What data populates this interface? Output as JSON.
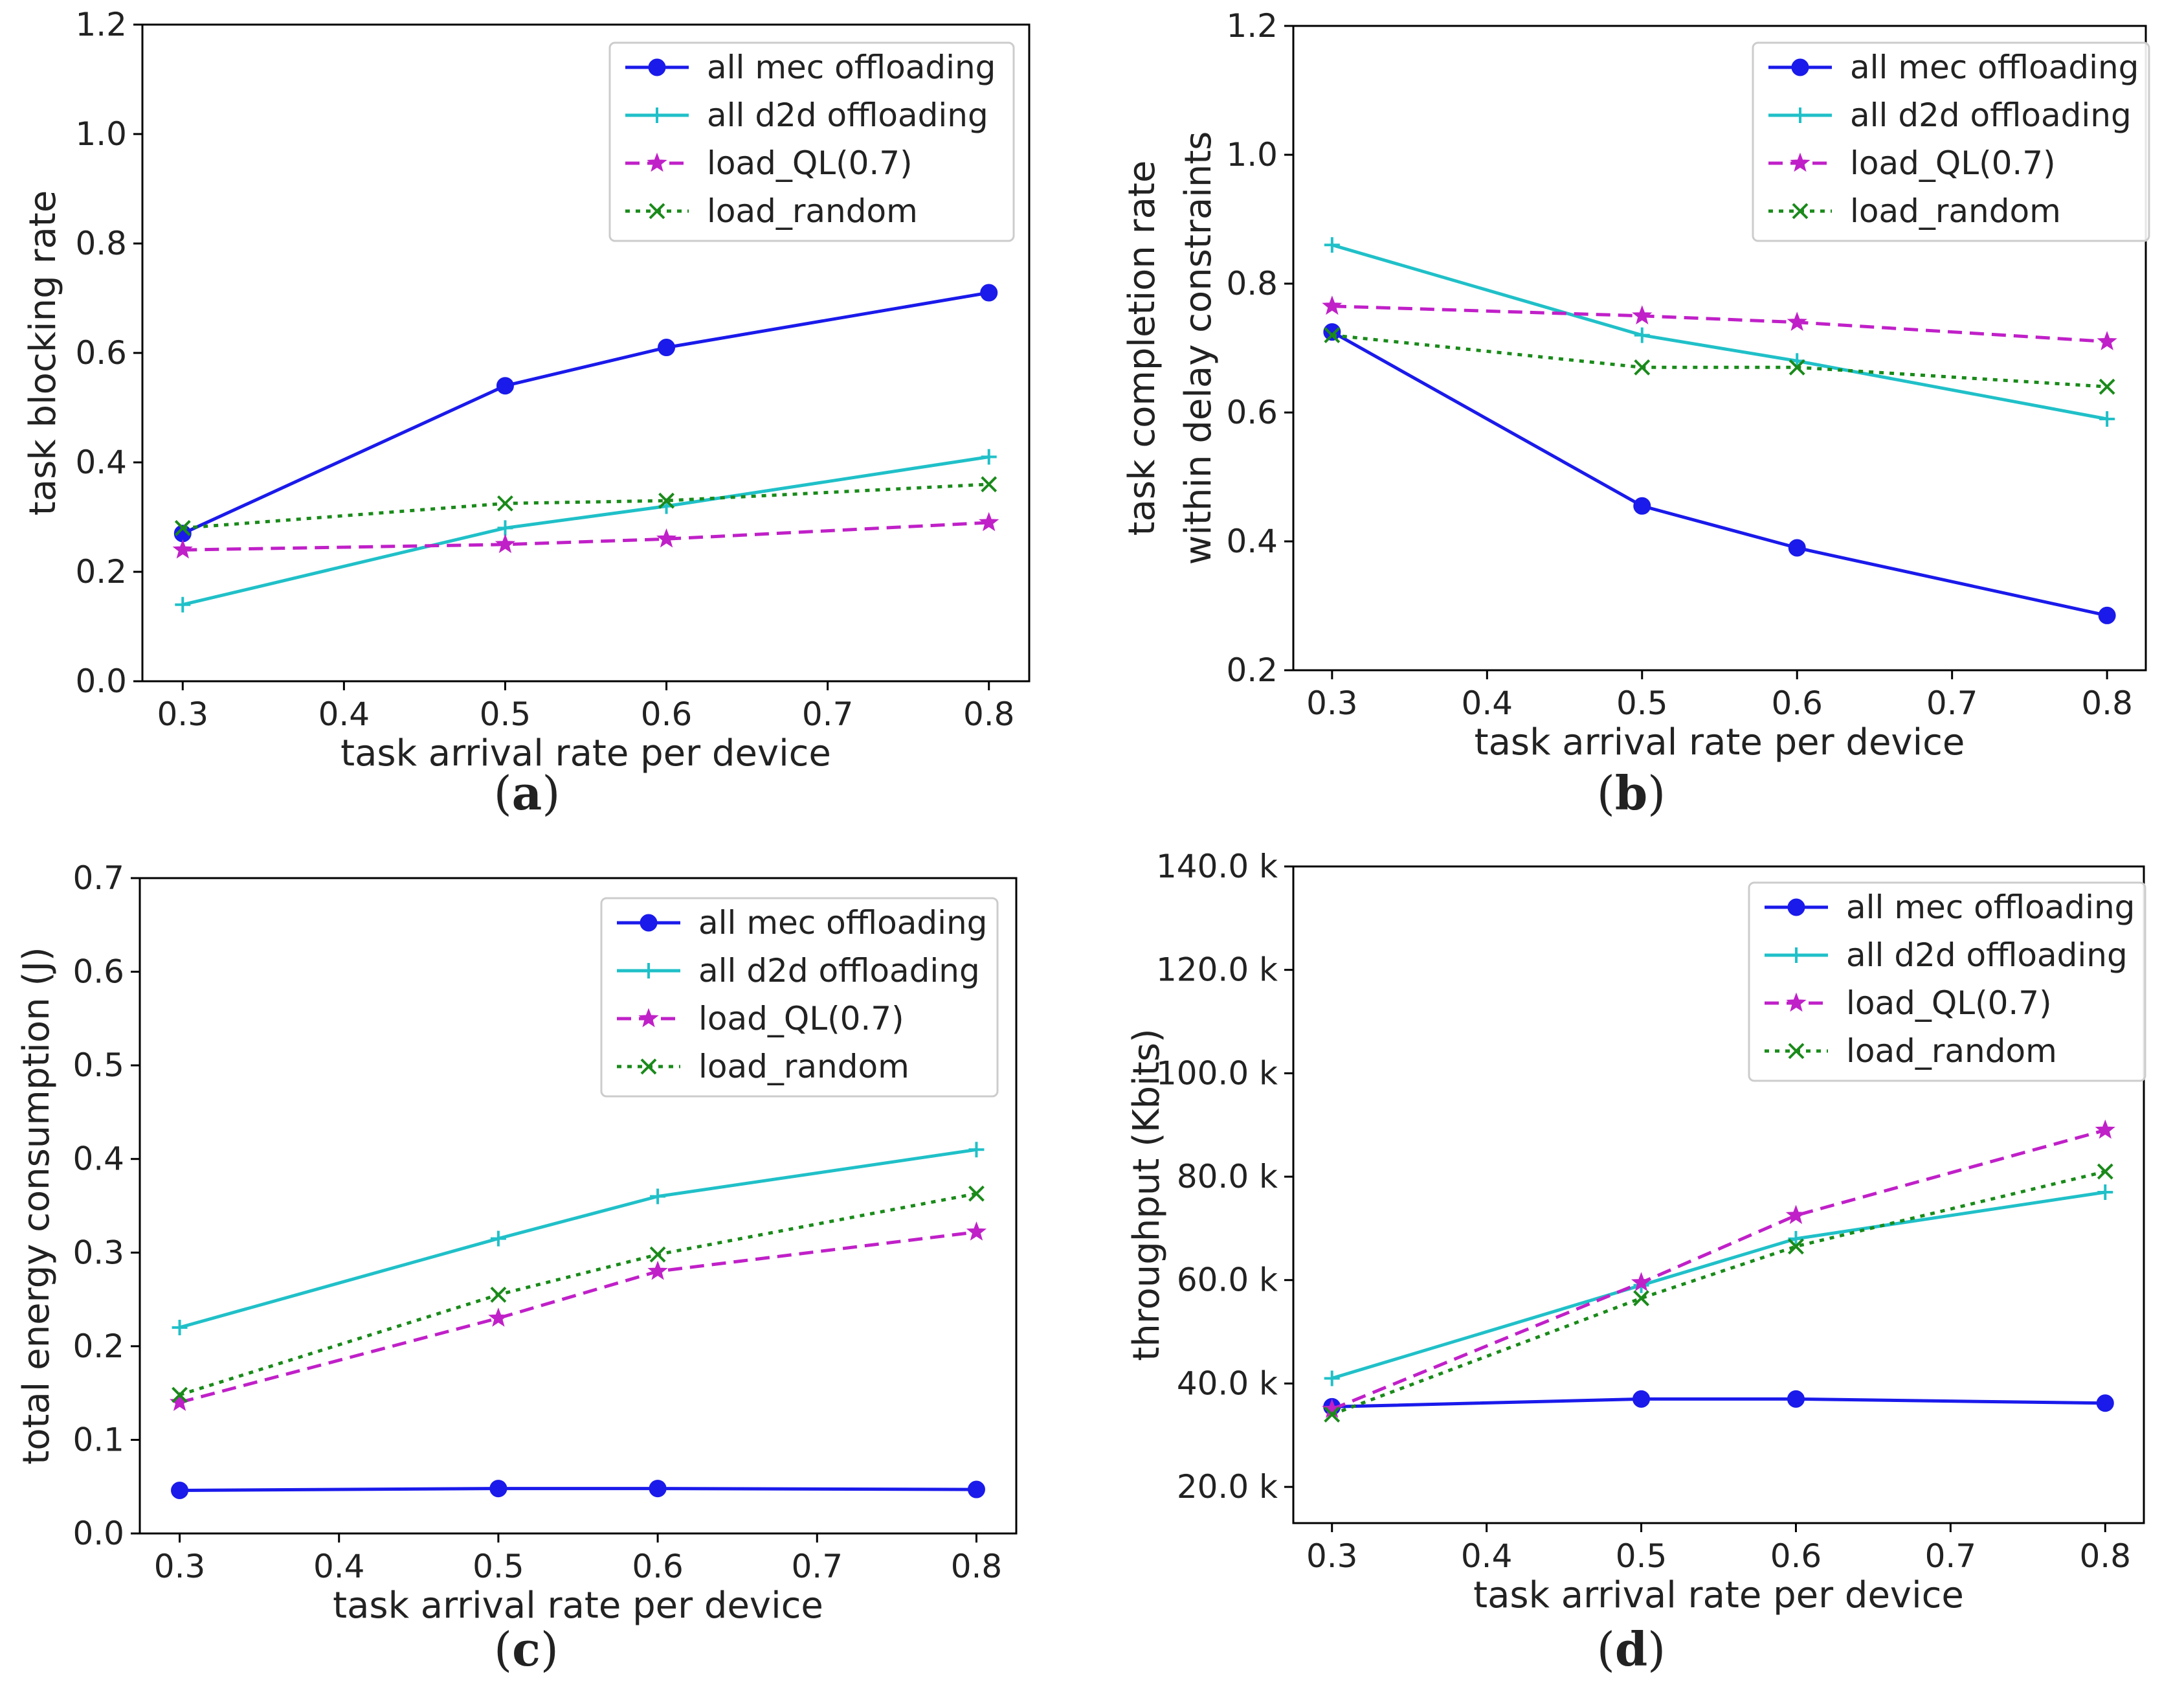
{
  "colors": {
    "mec": "#1a1aeb",
    "d2d": "#20c0c8",
    "ql": "#c020c8",
    "random": "#1a8a1a",
    "axis": "#000000"
  },
  "chart_data": [
    {
      "id": "a",
      "panel_label": "a",
      "type": "line",
      "title": "",
      "xlabel": "task arrival rate per device",
      "ylabel": [
        "task blocking rate"
      ],
      "xlim": [
        0.275,
        0.825
      ],
      "ylim": [
        0.0,
        1.2
      ],
      "xticks": [
        0.3,
        0.4,
        0.5,
        0.6,
        0.7,
        0.8
      ],
      "xtick_labels": [
        "0.3",
        "0.4",
        "0.5",
        "0.6",
        "0.7",
        "0.8"
      ],
      "yticks": [
        0.0,
        0.2,
        0.4,
        0.6,
        0.8,
        1.0,
        1.2
      ],
      "ytick_labels": [
        "0.0",
        "0.2",
        "0.4",
        "0.6",
        "0.8",
        "1.0",
        "1.2"
      ],
      "grid": false,
      "legend_position": "top-right",
      "x": [
        0.3,
        0.5,
        0.6,
        0.8
      ],
      "series": [
        {
          "name": "all mec offloading",
          "key": "mec",
          "values": [
            0.27,
            0.54,
            0.61,
            0.71
          ]
        },
        {
          "name": "all d2d offloading",
          "key": "d2d",
          "values": [
            0.14,
            0.28,
            0.32,
            0.41
          ]
        },
        {
          "name": "load_QL(0.7)",
          "key": "ql",
          "values": [
            0.24,
            0.25,
            0.26,
            0.29
          ]
        },
        {
          "name": "load_random",
          "key": "random",
          "values": [
            0.28,
            0.325,
            0.33,
            0.36
          ]
        }
      ]
    },
    {
      "id": "b",
      "panel_label": "b",
      "type": "line",
      "title": "",
      "xlabel": "task arrival rate per device",
      "ylabel": [
        "task completion rate",
        "within delay constraints"
      ],
      "xlim": [
        0.275,
        0.825
      ],
      "ylim": [
        0.2,
        1.2
      ],
      "xticks": [
        0.3,
        0.4,
        0.5,
        0.6,
        0.7,
        0.8
      ],
      "xtick_labels": [
        "0.3",
        "0.4",
        "0.5",
        "0.6",
        "0.7",
        "0.8"
      ],
      "yticks": [
        0.2,
        0.4,
        0.6,
        0.8,
        1.0,
        1.2
      ],
      "ytick_labels": [
        "0.2",
        "0.4",
        "0.6",
        "0.8",
        "1.0",
        "1.2"
      ],
      "grid": false,
      "legend_position": "top-right",
      "x": [
        0.3,
        0.5,
        0.6,
        0.8
      ],
      "series": [
        {
          "name": "all mec offloading",
          "key": "mec",
          "values": [
            0.725,
            0.455,
            0.39,
            0.285
          ]
        },
        {
          "name": "all d2d offloading",
          "key": "d2d",
          "values": [
            0.86,
            0.72,
            0.68,
            0.59
          ]
        },
        {
          "name": "load_QL(0.7)",
          "key": "ql",
          "values": [
            0.765,
            0.75,
            0.74,
            0.71
          ]
        },
        {
          "name": "load_random",
          "key": "random",
          "values": [
            0.72,
            0.67,
            0.67,
            0.64
          ]
        }
      ]
    },
    {
      "id": "c",
      "panel_label": "c",
      "type": "line",
      "title": "",
      "xlabel": "task arrival rate per device",
      "ylabel": [
        "total energy consumption (J)"
      ],
      "xlim": [
        0.275,
        0.825
      ],
      "ylim": [
        0.0,
        0.7
      ],
      "xticks": [
        0.3,
        0.4,
        0.5,
        0.6,
        0.7,
        0.8
      ],
      "xtick_labels": [
        "0.3",
        "0.4",
        "0.5",
        "0.6",
        "0.7",
        "0.8"
      ],
      "yticks": [
        0.0,
        0.1,
        0.2,
        0.3,
        0.4,
        0.5,
        0.6,
        0.7
      ],
      "ytick_labels": [
        "0.0",
        "0.1",
        "0.2",
        "0.3",
        "0.4",
        "0.5",
        "0.6",
        "0.7"
      ],
      "grid": false,
      "legend_position": "top-right",
      "x": [
        0.3,
        0.5,
        0.6,
        0.8
      ],
      "series": [
        {
          "name": "all mec offloading",
          "key": "mec",
          "values": [
            0.046,
            0.048,
            0.048,
            0.047
          ]
        },
        {
          "name": "all d2d offloading",
          "key": "d2d",
          "values": [
            0.22,
            0.315,
            0.36,
            0.41
          ]
        },
        {
          "name": "load_QL(0.7)",
          "key": "ql",
          "values": [
            0.14,
            0.23,
            0.28,
            0.322
          ]
        },
        {
          "name": "load_random",
          "key": "random",
          "values": [
            0.148,
            0.255,
            0.298,
            0.363
          ]
        }
      ]
    },
    {
      "id": "d",
      "panel_label": "d",
      "type": "line",
      "title": "",
      "xlabel": "task arrival rate per device",
      "ylabel": [
        "throughput (Kbits)"
      ],
      "xlim": [
        0.275,
        0.825
      ],
      "ylim": [
        13000,
        140000
      ],
      "xticks": [
        0.3,
        0.4,
        0.5,
        0.6,
        0.7,
        0.8
      ],
      "xtick_labels": [
        "0.3",
        "0.4",
        "0.5",
        "0.6",
        "0.7",
        "0.8"
      ],
      "yticks": [
        20000,
        40000,
        60000,
        80000,
        100000,
        120000,
        140000
      ],
      "ytick_labels": [
        "20.0 k",
        "40.0 k",
        "60.0 k",
        "80.0 k",
        "100.0 k",
        "120.0 k",
        "140.0 k"
      ],
      "grid": false,
      "legend_position": "top-right",
      "x": [
        0.3,
        0.5,
        0.6,
        0.8
      ],
      "series": [
        {
          "name": "all mec offloading",
          "key": "mec",
          "values": [
            35500,
            37000,
            37000,
            36200
          ]
        },
        {
          "name": "all d2d offloading",
          "key": "d2d",
          "values": [
            41000,
            59000,
            68000,
            77000
          ]
        },
        {
          "name": "load_QL(0.7)",
          "key": "ql",
          "values": [
            35000,
            59500,
            72500,
            89000
          ]
        },
        {
          "name": "load_random",
          "key": "random",
          "values": [
            34000,
            56500,
            66500,
            81000
          ]
        }
      ]
    }
  ]
}
